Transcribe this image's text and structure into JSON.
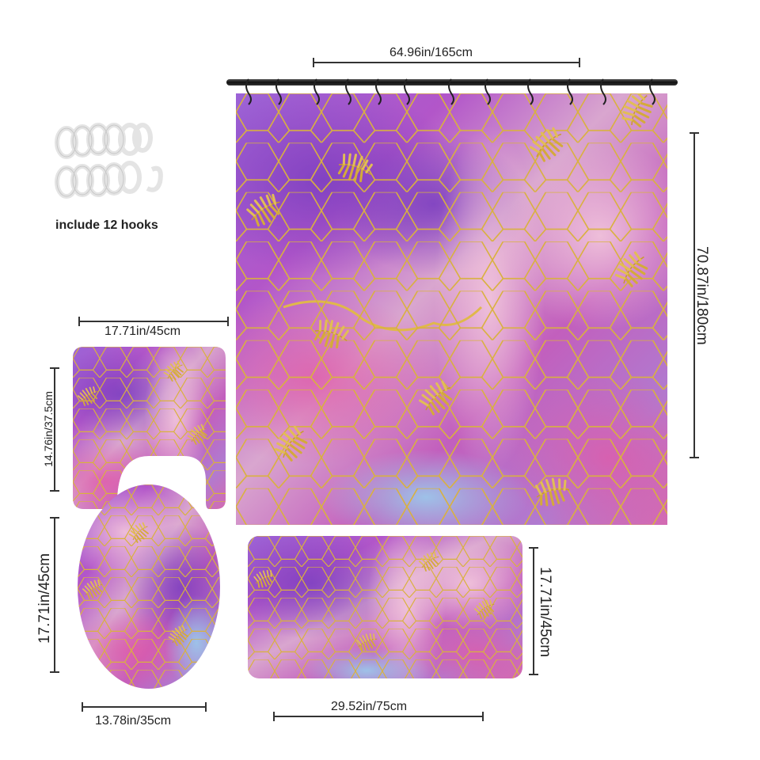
{
  "product": {
    "hooks_label": "include 12 hooks",
    "hook_count": 12
  },
  "dimensions": {
    "curtain_width": "64.96in/165cm",
    "curtain_height": "70.87in/180cm",
    "contour_width": "17.71in/45cm",
    "contour_height": "14.76in/37.5cm",
    "lid_height": "17.71in/45cm",
    "lid_width": "13.78in/35cm",
    "mat_height": "17.71in/45cm",
    "mat_width": "29.52in/75cm"
  },
  "colors": {
    "purple": "#8b3fc4",
    "pink": "#d86fb8",
    "lavender": "#c49ad8",
    "blue": "#8fb7e0",
    "gold": "#d4aa3a"
  }
}
